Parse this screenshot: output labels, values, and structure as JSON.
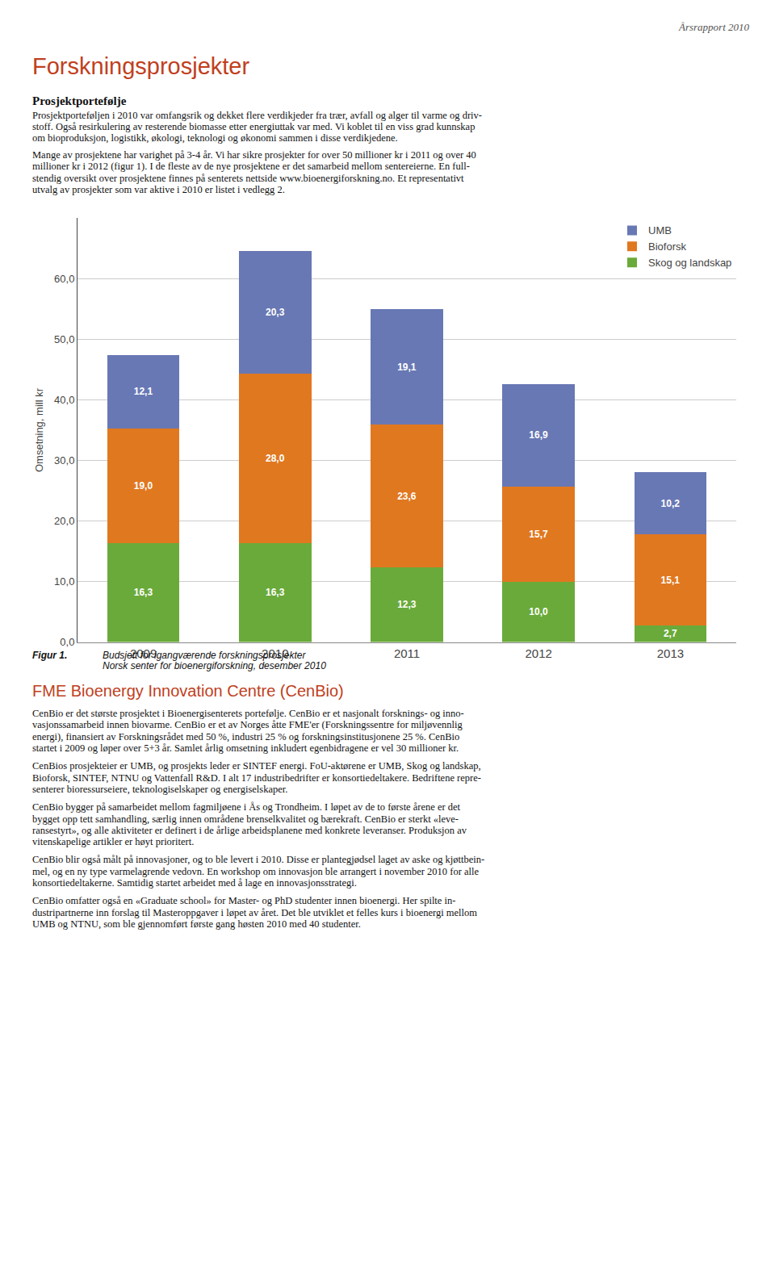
{
  "chart_data": {
    "type": "bar",
    "stacked": true,
    "categories": [
      "2009",
      "2010",
      "2011",
      "2012",
      "2013"
    ],
    "series": [
      {
        "name": "Skog og landskap",
        "color": "#6aaa3a",
        "values": [
          16.3,
          16.3,
          12.3,
          10.0,
          2.7
        ],
        "value_labels": [
          "16,3",
          "16,3",
          "12,3",
          "10,0",
          "2,7"
        ]
      },
      {
        "name": "Bioforsk",
        "color": "#e07820",
        "values": [
          19.0,
          28.0,
          23.6,
          15.7,
          15.1
        ],
        "value_labels": [
          "19,0",
          "28,0",
          "23,6",
          "15,7",
          "15,1"
        ]
      },
      {
        "name": "UMB",
        "color": "#6878b4",
        "values": [
          12.1,
          20.3,
          19.1,
          16.9,
          10.2
        ],
        "value_labels": [
          "12,1",
          "20,3",
          "19,1",
          "16,9",
          "10,2"
        ]
      }
    ],
    "ylabel": "Omsetning, mill kr",
    "ylim": [
      0,
      70
    ],
    "yticks": [
      {
        "value": 0,
        "label": "0,0"
      },
      {
        "value": 10,
        "label": "10,0"
      },
      {
        "value": 20,
        "label": "20,0"
      },
      {
        "value": 30,
        "label": "30,0"
      },
      {
        "value": 40,
        "label": "40,0"
      },
      {
        "value": 50,
        "label": "50,0"
      },
      {
        "value": 60,
        "label": "60,0"
      }
    ],
    "grid": true,
    "legend": "upper right",
    "data_labels": true,
    "annotations": [
      "Årsrapport 2010",
      "Forskningsprosjekter",
      "Prosjektportefølje",
      "Prosjektporteføljen i 2010 var omfangsrik og dekket flere verdikjeder fra trær, avfall og alger til varme og driv-",
      "stoff. Også resirkulering av resterende biomasse etter energiuttak var med. Vi koblet til en viss grad kunnskap",
      "om bioproduksjon, logistikk, økologi, teknologi og økonomi sammen i disse verdikjedene.",
      "Mange av prosjektene har varighet på 3-4 år. Vi har sikre prosjekter for over 50 millioner kr i 2011 og over 40",
      "millioner kr i 2012 (figur 1). I de fleste av de nye prosjektene er det samarbeid mellom sentereierne. En full-",
      "stendig oversikt over prosjektene finnes på senterets nettside www.bioenergiforskning.no. Et representativt",
      "utvalg av prosjekter som var aktive i 2010 er listet i vedlegg 2.",
      "Figur 1.",
      "Budsjett for igangværende forskningsprosjekter",
      "Norsk senter for bioenergiforskning, desember 2010",
      "FME Bioenergy Innovation Centre (CenBio)",
      "CenBio er det største prosjektet i Bioenergisenterets portefølje. CenBio er et nasjonalt forsknings- og inno-",
      "vasjonssamarbeid innen biovarme. CenBio er et av Norges åtte FME'er (Forskningssentre for miljøvennlig",
      "energi), finansiert av Forskningsrådet med 50 %, industri 25 % og forskningsinstitusjonene 25 %. CenBio",
      "startet i 2009 og løper over 5+3 år. Samlet årlig omsetning inkludert egenbidragene er vel 30 millioner kr.",
      "CenBios prosjekteier er UMB, og prosjekts leder er SINTEF energi. FoU-aktørene er UMB, Skog og landskap,",
      "Bioforsk, SINTEF, NTNU og Vattenfall R&D. I alt 17 industribedrifter er konsortiedeltakere. Bedriftene repre-",
      "senterer bioressurseiere, teknologiselskaper og energiselskaper.",
      "CenBio bygger på samarbeidet mellom fagmiljøene i Ås og Trondheim. I løpet av de to første årene er det",
      "bygget opp tett samhandling, særlig innen områdene brenselkvalitet og bærekraft. CenBio er sterkt «leve-",
      "ransestyrt», og alle aktiviteter er definert i de årlige arbeidsplanene med konkrete leveranser. Produksjon av",
      "vitenskapelige artikler er høyt prioritert.",
      "CenBio blir også målt på innovasjoner, og to ble levert i 2010. Disse er plantegjødsel laget av aske og kjøttbein-",
      "mel, og en ny type varmelagrende vedovn. En workshop om innovasjon ble arrangert i november 2010 for alle",
      "konsortiedeltakerne. Samtidig startet arbeidet med å lage en innovasjonsstrategi.",
      "CenBio omfatter også en «Graduate school» for Master- og PhD studenter innen bioenergi. Her spilte in-",
      "dustripartnerne inn forslag til Masteroppgaver i løpet av året. Det ble utviklet et felles kurs i bioenergi mellom",
      "UMB og NTNU, som ble gjennomført første gang høsten 2010 med 40 studenter."
    ]
  }
}
